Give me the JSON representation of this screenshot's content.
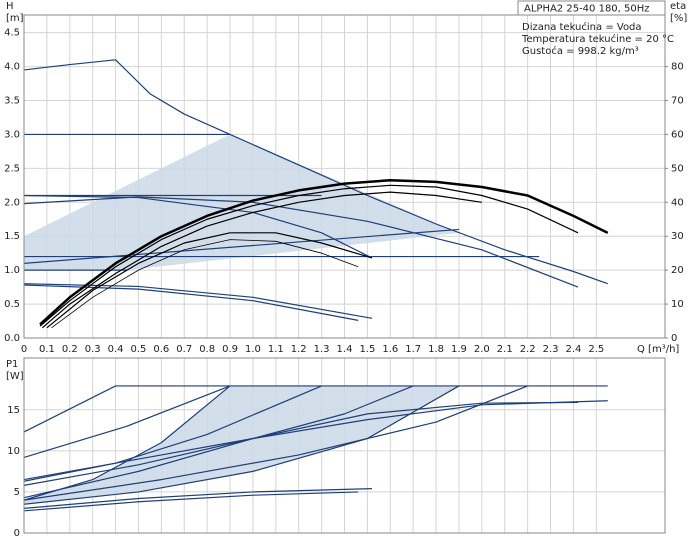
{
  "chart_data": [
    {
      "type": "line",
      "title": "ALPHA2 25-40 180, 50Hz",
      "notes": [
        "Dizana tekućina = Voda",
        "Temperatura tekućine = 20 °C",
        "Gustoća = 998.2 kg/m³"
      ],
      "y_label": "H",
      "y_unit": "[m]",
      "y2_label": "eta",
      "y2_unit": "[%]",
      "x_label": "Q [m³/h]",
      "xlim": [
        0,
        2.8
      ],
      "ylim": [
        0,
        4.76
      ],
      "y2lim": [
        0,
        95.2
      ],
      "grid": true,
      "xticks": [
        0,
        0.1,
        0.2,
        0.3,
        0.4,
        0.5,
        0.6,
        0.7,
        0.8,
        0.9,
        {
          "value": 1,
          "label": "1.0"
        },
        1.1,
        1.2,
        1.3,
        1.4,
        1.5,
        1.6,
        1.7,
        1.8,
        1.9,
        {
          "value": 2,
          "label": "2.0"
        },
        2.1,
        2.2,
        2.3,
        2.4,
        2.5
      ],
      "yticks": [
        {
          "value": 0,
          "label": "0.0"
        },
        0.5,
        {
          "value": 1,
          "label": "1.0"
        },
        1.5,
        {
          "value": 2,
          "label": "2.0"
        },
        2.5,
        {
          "value": 3,
          "label": "3.0"
        },
        3.5,
        {
          "value": 4,
          "label": "4.0"
        },
        4.5
      ],
      "y2ticks": [
        0,
        10,
        20,
        30,
        40,
        50,
        60,
        70,
        80
      ],
      "areas": [
        {
          "color": "#cbd8e8",
          "x": [
            0,
            0,
            0.9,
            1.9,
            0.45
          ],
          "values": [
            1.0,
            1.5,
            3.0,
            1.55,
            1.0
          ]
        }
      ],
      "series": [
        {
          "color": "#1f3f7a",
          "x": [
            0,
            0.2,
            0.4,
            0.55,
            0.7,
            0.9,
            1.2,
            1.5,
            1.8,
            2.1,
            2.4,
            2.55
          ],
          "values": [
            3.95,
            4.03,
            4.1,
            3.6,
            3.3,
            3.0,
            2.55,
            2.1,
            1.68,
            1.3,
            0.98,
            0.8
          ]
        },
        {
          "color": "#1f3f7a",
          "x": [
            0,
            0.9
          ],
          "values": [
            3.0,
            3.0
          ]
        },
        {
          "color": "#1f3f7a",
          "x": [
            0,
            1.3
          ],
          "values": [
            2.1,
            2.1
          ]
        },
        {
          "color": "#1f3f7a",
          "x": [
            0,
            2.25
          ],
          "values": [
            1.2,
            1.2
          ]
        },
        {
          "color": "#1f3f7a",
          "x": [
            0,
            0.45
          ],
          "values": [
            1.0,
            1.0
          ]
        },
        {
          "color": "#1f3f7a",
          "x": [
            0,
            1.9
          ],
          "values": [
            1.1,
            1.6
          ]
        },
        {
          "color": "#1f3f7a",
          "x": [
            0,
            0.5,
            1,
            1.5,
            2,
            2.42
          ],
          "values": [
            1.98,
            2.08,
            2.0,
            1.72,
            1.3,
            0.75
          ]
        },
        {
          "color": "#1f3f7a",
          "x": [
            0,
            0.5,
            1,
            1.3,
            1.52
          ],
          "values": [
            2.1,
            2.07,
            1.85,
            1.55,
            1.18
          ]
        },
        {
          "color": "#1f3f7a",
          "x": [
            0,
            0.5,
            1,
            1.52
          ],
          "values": [
            0.8,
            0.76,
            0.6,
            0.29
          ]
        },
        {
          "color": "#1f3f7a",
          "x": [
            0,
            0.5,
            1,
            1.46
          ],
          "values": [
            0.78,
            0.72,
            0.55,
            0.26
          ]
        },
        {
          "color": "#000000",
          "axis": "y2",
          "line_width": 2.5,
          "x": [
            0.07,
            0.2,
            0.4,
            0.6,
            0.8,
            1.0,
            1.2,
            1.4,
            1.6,
            1.8,
            2.0,
            2.2,
            2.4,
            2.55
          ],
          "values": [
            4,
            12,
            22,
            30,
            36,
            40.5,
            43.5,
            45.5,
            46.5,
            46,
            44.5,
            42,
            36,
            31
          ]
        },
        {
          "color": "#000000",
          "axis": "y2",
          "line_width": 1.2,
          "x": [
            0.07,
            0.2,
            0.4,
            0.6,
            0.8,
            1.0,
            1.2,
            1.4,
            1.6,
            1.8,
            2.0,
            2.2,
            2.42
          ],
          "values": [
            3.5,
            11,
            21,
            29,
            35,
            39,
            42,
            44,
            45,
            44.5,
            42,
            38,
            31
          ]
        },
        {
          "color": "#000000",
          "axis": "y2",
          "line_width": 1.2,
          "x": [
            0.08,
            0.2,
            0.4,
            0.6,
            0.8,
            1.0,
            1.2,
            1.4,
            1.6,
            1.8,
            2.0
          ],
          "values": [
            3,
            10,
            19,
            27,
            33,
            37,
            40,
            42,
            43,
            42,
            40
          ]
        },
        {
          "color": "#000000",
          "axis": "y2",
          "line_width": 1.2,
          "x": [
            0.1,
            0.3,
            0.5,
            0.7,
            0.9,
            1.1,
            1.3,
            1.52
          ],
          "values": [
            3,
            14,
            22,
            28,
            31,
            31,
            28,
            23.6
          ]
        },
        {
          "color": "#000000",
          "axis": "y2",
          "line_width": 0.8,
          "x": [
            0.12,
            0.3,
            0.5,
            0.7,
            0.9,
            1.1,
            1.3,
            1.46
          ],
          "values": [
            3,
            12,
            20,
            26,
            29,
            28.5,
            25,
            21
          ]
        }
      ]
    },
    {
      "type": "line",
      "y_label": "P1",
      "y_unit": "[W]",
      "xlim": [
        0,
        2.8
      ],
      "ylim": [
        0,
        21.3
      ],
      "grid": true,
      "xticks": [
        0,
        0.1,
        0.2,
        0.3,
        0.4,
        0.5,
        0.6,
        0.7,
        0.8,
        0.9,
        1,
        1.1,
        1.2,
        1.3,
        1.4,
        1.5,
        1.6,
        1.7,
        1.8,
        1.9,
        2,
        2.1,
        2.2,
        2.3,
        2.4,
        2.5
      ],
      "yticks": [
        0,
        5,
        10,
        15
      ],
      "areas": [
        {
          "color": "#cbd8e8",
          "x": [
            0,
            0.3,
            0.6,
            0.9,
            1.9,
            1.5,
            1.0,
            0.5,
            0
          ],
          "values": [
            4.0,
            6.5,
            11,
            17.9,
            17.9,
            11.5,
            7.5,
            5,
            3.5
          ]
        }
      ],
      "series": [
        {
          "color": "#1f3f7a",
          "x": [
            0,
            0.4,
            2.55
          ],
          "values": [
            12.3,
            17.9,
            17.9
          ]
        },
        {
          "color": "#1f3f7a",
          "x": [
            0,
            0.45,
            0.9
          ],
          "values": [
            9.2,
            13,
            17.9
          ]
        },
        {
          "color": "#1f3f7a",
          "x": [
            0,
            0.3,
            0.6,
            0.9
          ],
          "values": [
            4.0,
            6.5,
            11,
            17.9
          ]
        },
        {
          "color": "#1f3f7a",
          "x": [
            0,
            0.5,
            1.0,
            1.5,
            1.9
          ],
          "values": [
            3.5,
            5,
            7.5,
            11.5,
            17.9
          ]
        },
        {
          "color": "#1f3f7a",
          "x": [
            0,
            0.4,
            0.8,
            1.3
          ],
          "values": [
            6.3,
            8.5,
            12,
            17.9
          ]
        },
        {
          "color": "#1f3f7a",
          "x": [
            0,
            0.5,
            1.0,
            1.4,
            1.7
          ],
          "values": [
            5.8,
            8.3,
            11.5,
            14.5,
            17.9
          ]
        },
        {
          "color": "#1f3f7a",
          "x": [
            0,
            0.5,
            1.0,
            1.5,
            2.0,
            2.42
          ],
          "values": [
            4.3,
            7.5,
            11.5,
            14.5,
            15.8,
            15.9
          ]
        },
        {
          "color": "#1f3f7a",
          "x": [
            0,
            0.6,
            1.2,
            1.8,
            2.2
          ],
          "values": [
            4.0,
            6.5,
            9.5,
            13.5,
            17.9
          ]
        },
        {
          "color": "#1f3f7a",
          "x": [
            0,
            0.5,
            1.0,
            1.5,
            2.0,
            2.55
          ],
          "values": [
            6.5,
            9,
            11.5,
            13.8,
            15.6,
            16.1
          ]
        },
        {
          "color": "#1f3f7a",
          "x": [
            0,
            0.5,
            1,
            1.52
          ],
          "values": [
            3.0,
            4.2,
            5.0,
            5.4
          ]
        },
        {
          "color": "#1f3f7a",
          "x": [
            0,
            0.5,
            1,
            1.46
          ],
          "values": [
            2.7,
            3.8,
            4.6,
            5.0
          ]
        }
      ]
    }
  ]
}
